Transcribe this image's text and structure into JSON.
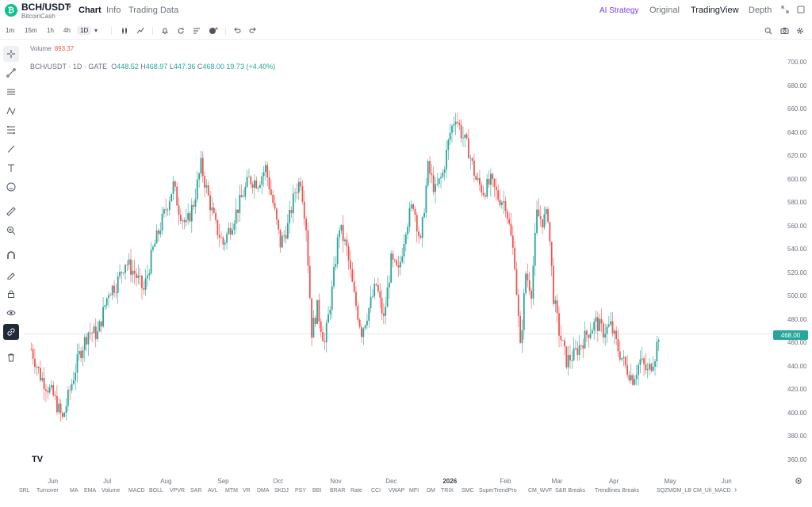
{
  "header": {
    "coin_glyph": "₿",
    "pair": "BCH/USDT",
    "pair_caret": "▾",
    "subtitle": "BitcoinCash",
    "tabs": [
      {
        "label": "Chart",
        "active": true
      },
      {
        "label": "Info",
        "active": false
      },
      {
        "label": "Trading Data",
        "active": false
      }
    ],
    "right_tabs": [
      {
        "label": "AI Strategy",
        "style": "ai"
      },
      {
        "label": "Original",
        "style": "normal"
      },
      {
        "label": "TradingView",
        "style": "active"
      },
      {
        "label": "Depth",
        "style": "normal"
      }
    ],
    "expand_icon": "expand-icon",
    "window_icon": "window-icon"
  },
  "toolbar": {
    "timeframes": [
      "1m",
      "15m",
      "1h",
      "4h",
      "1D"
    ],
    "active_timeframe": "1D",
    "caret": "▾",
    "icons": [
      "candles-icon",
      "indicators-icon",
      "alert-icon",
      "replay-icon",
      "layout-icon",
      "template-icon",
      "undo-icon",
      "redo-icon",
      "search-icon",
      "camera-icon",
      "gear-icon"
    ]
  },
  "legend": {
    "volume_label": "Volume",
    "volume_value": "893.37",
    "symbol": "BCH/USDT · 1D · GATE",
    "o_label": "O",
    "open": "448.52",
    "h_label": "H",
    "high": "468.97",
    "l_label": "L",
    "low": "447.36",
    "c_label": "C",
    "close": "468.00",
    "change": "19.73 (+4.40%)"
  },
  "current_price": "468.00",
  "logo_text": "TV",
  "chart_data": {
    "type": "candlestick",
    "y_ticks": [
      "700.00",
      "680.00",
      "660.00",
      "640.00",
      "620.00",
      "600.00",
      "580.00",
      "560.00",
      "540.00",
      "520.00",
      "500.00",
      "480.00",
      "460.00",
      "440.00",
      "420.00",
      "400.00",
      "380.00",
      "360.00"
    ],
    "ylim": [
      355,
      705
    ],
    "x_ticks": [
      "Jun",
      "Jul",
      "Aug",
      "Sep",
      "Oct",
      "Nov",
      "Dec",
      "2026",
      "Feb",
      "Mar",
      "Apr",
      "May",
      "Jun"
    ],
    "bold_tick": "2026",
    "up_color": "#26a69a",
    "down_color": "#ef5350",
    "close_path": [
      [
        "2025-05-20",
        455
      ],
      [
        "2025-05-25",
        432
      ],
      [
        "2025-06-01",
        415
      ],
      [
        "2025-06-06",
        395
      ],
      [
        "2025-06-10",
        420
      ],
      [
        "2025-06-15",
        450
      ],
      [
        "2025-06-20",
        470
      ],
      [
        "2025-06-25",
        468
      ],
      [
        "2025-07-01",
        505
      ],
      [
        "2025-07-05",
        510
      ],
      [
        "2025-07-10",
        530
      ],
      [
        "2025-07-15",
        520
      ],
      [
        "2025-07-20",
        505
      ],
      [
        "2025-07-25",
        540
      ],
      [
        "2025-08-01",
        575
      ],
      [
        "2025-08-05",
        595
      ],
      [
        "2025-08-08",
        575
      ],
      [
        "2025-08-12",
        560
      ],
      [
        "2025-08-16",
        580
      ],
      [
        "2025-08-20",
        612
      ],
      [
        "2025-08-24",
        585
      ],
      [
        "2025-08-28",
        560
      ],
      [
        "2025-09-01",
        545
      ],
      [
        "2025-09-05",
        560
      ],
      [
        "2025-09-10",
        580
      ],
      [
        "2025-09-15",
        600
      ],
      [
        "2025-09-20",
        598
      ],
      [
        "2025-09-24",
        610
      ],
      [
        "2025-09-28",
        580
      ],
      [
        "2025-10-02",
        545
      ],
      [
        "2025-10-06",
        560
      ],
      [
        "2025-10-10",
        590
      ],
      [
        "2025-10-13",
        600
      ],
      [
        "2025-10-16",
        560
      ],
      [
        "2025-10-19",
        470
      ],
      [
        "2025-10-22",
        490
      ],
      [
        "2025-10-26",
        460
      ],
      [
        "2025-10-30",
        505
      ],
      [
        "2025-11-03",
        560
      ],
      [
        "2025-11-07",
        540
      ],
      [
        "2025-11-11",
        500
      ],
      [
        "2025-11-15",
        470
      ],
      [
        "2025-11-19",
        490
      ],
      [
        "2025-11-23",
        510
      ],
      [
        "2025-11-27",
        480
      ],
      [
        "2025-12-01",
        530
      ],
      [
        "2025-12-05",
        520
      ],
      [
        "2025-12-09",
        560
      ],
      [
        "2025-12-13",
        580
      ],
      [
        "2025-12-17",
        545
      ],
      [
        "2025-12-21",
        610
      ],
      [
        "2025-12-25",
        590
      ],
      [
        "2025-12-29",
        605
      ],
      [
        "2026-01-02",
        640
      ],
      [
        "2026-01-05",
        655
      ],
      [
        "2026-01-08",
        640
      ],
      [
        "2026-01-12",
        625
      ],
      [
        "2026-01-16",
        600
      ],
      [
        "2026-01-20",
        590
      ],
      [
        "2026-01-24",
        598
      ],
      [
        "2026-01-28",
        585
      ],
      [
        "2026-02-01",
        580
      ],
      [
        "2026-02-03",
        560
      ],
      [
        "2026-02-06",
        530
      ],
      [
        "2026-02-09",
        455
      ],
      [
        "2026-02-12",
        520
      ],
      [
        "2026-02-15",
        505
      ],
      [
        "2026-02-18",
        570
      ],
      [
        "2026-02-21",
        565
      ],
      [
        "2026-02-24",
        570
      ],
      [
        "2026-02-27",
        500
      ],
      [
        "2026-03-02",
        470
      ],
      [
        "2026-03-06",
        445
      ],
      [
        "2026-03-10",
        450
      ],
      [
        "2026-03-14",
        460
      ],
      [
        "2026-03-18",
        470
      ],
      [
        "2026-03-22",
        478
      ],
      [
        "2026-03-26",
        470
      ],
      [
        "2026-03-30",
        475
      ],
      [
        "2026-04-03",
        455
      ],
      [
        "2026-04-07",
        440
      ],
      [
        "2026-04-11",
        430
      ],
      [
        "2026-04-15",
        445
      ],
      [
        "2026-04-19",
        435
      ],
      [
        "2026-04-23",
        450
      ],
      [
        "2026-04-25",
        468
      ]
    ],
    "xlim": [
      "2025-05-16",
      "2026-06-26"
    ]
  },
  "indicators": [
    "SRL",
    "Turnover",
    "MA",
    "EMA",
    "Volume",
    "MACD",
    "BOLL",
    "VPVR",
    "SAR",
    "AVL",
    "MTM",
    "VR",
    "DMA",
    "SKDJ",
    "PSY",
    "BBI",
    "BRAR",
    "Rate",
    "CCI",
    "VWAP",
    "MFI",
    "DM",
    "TRIX",
    "SMC",
    "SuperTrendPro",
    "CM_WVF",
    "S&R Breaks",
    "Trendlines Breaks",
    "SQZMOM_LB",
    "CM_Ult_MACD"
  ],
  "indicator_more": "›"
}
